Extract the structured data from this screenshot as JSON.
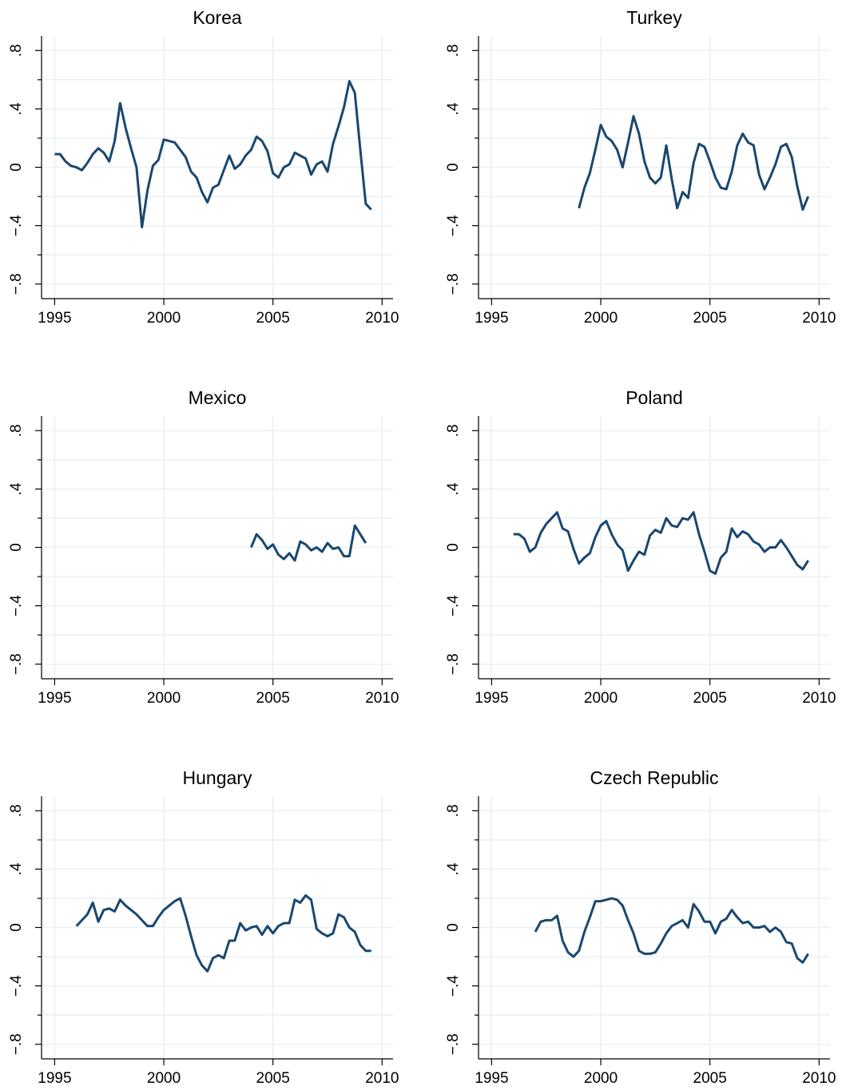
{
  "chart_data": [
    {
      "type": "line",
      "title": "Korea",
      "color": "#1a476f",
      "grid": true,
      "xlim": [
        1994.4,
        2010.5
      ],
      "ylim": [
        -0.9,
        0.9
      ],
      "xticks": [
        1995,
        2000,
        2005,
        2010
      ],
      "yticks": [
        {
          "value": -0.8,
          "label": "−.8"
        },
        {
          "value": -0.4,
          "label": "−.4"
        },
        0,
        {
          "value": 0.4,
          "label": ".4"
        },
        {
          "value": 0.8,
          "label": ".8"
        }
      ],
      "minor_yticks": [
        -0.6,
        -0.2,
        0.2,
        0.6
      ],
      "x": [
        1995,
        1995.25,
        1995.5,
        1995.75,
        1996,
        1996.25,
        1996.5,
        1996.75,
        1997,
        1997.25,
        1997.5,
        1997.75,
        1998,
        1998.25,
        1998.5,
        1998.75,
        1999,
        1999.25,
        1999.5,
        1999.75,
        2000,
        2000.25,
        2000.5,
        2000.75,
        2001,
        2001.25,
        2001.5,
        2001.75,
        2002,
        2002.25,
        2002.5,
        2002.75,
        2003,
        2003.25,
        2003.5,
        2003.75,
        2004,
        2004.25,
        2004.5,
        2004.75,
        2005,
        2005.25,
        2005.5,
        2005.75,
        2006,
        2006.25,
        2006.5,
        2006.75,
        2007,
        2007.25,
        2007.5,
        2007.75,
        2008,
        2008.25,
        2008.5,
        2008.75,
        2009,
        2009.25,
        2009.5
      ],
      "values": [
        0.09,
        0.09,
        0.04,
        0.01,
        0.0,
        -0.02,
        0.03,
        0.09,
        0.13,
        0.1,
        0.04,
        0.18,
        0.44,
        0.27,
        0.13,
        0.0,
        -0.41,
        -0.16,
        0.01,
        0.05,
        0.19,
        0.18,
        0.17,
        0.12,
        0.07,
        -0.03,
        -0.07,
        -0.17,
        -0.24,
        -0.14,
        -0.12,
        -0.02,
        0.08,
        -0.01,
        0.02,
        0.08,
        0.12,
        0.21,
        0.18,
        0.11,
        -0.04,
        -0.07,
        0.0,
        0.02,
        0.1,
        0.08,
        0.06,
        -0.05,
        0.02,
        0.04,
        -0.03,
        0.16,
        0.28,
        0.41,
        0.59,
        0.51,
        0.12,
        -0.25,
        -0.29
      ]
    },
    {
      "type": "line",
      "title": "Turkey",
      "color": "#1a476f",
      "grid": true,
      "xlim": [
        1994.4,
        2010.5
      ],
      "ylim": [
        -0.9,
        0.9
      ],
      "xticks": [
        1995,
        2000,
        2005,
        2010
      ],
      "yticks": [
        {
          "value": -0.8,
          "label": "−.8"
        },
        {
          "value": -0.4,
          "label": "−.4"
        },
        0,
        {
          "value": 0.4,
          "label": ".4"
        },
        {
          "value": 0.8,
          "label": ".8"
        }
      ],
      "minor_yticks": [
        -0.6,
        -0.2,
        0.2,
        0.6
      ],
      "x": [
        1999,
        1999.25,
        1999.5,
        1999.75,
        2000,
        2000.25,
        2000.5,
        2000.75,
        2001,
        2001.25,
        2001.5,
        2001.75,
        2002,
        2002.25,
        2002.5,
        2002.75,
        2003,
        2003.25,
        2003.5,
        2003.75,
        2004,
        2004.25,
        2004.5,
        2004.75,
        2005,
        2005.25,
        2005.5,
        2005.75,
        2006,
        2006.25,
        2006.5,
        2006.75,
        2007,
        2007.25,
        2007.5,
        2007.75,
        2008,
        2008.25,
        2008.5,
        2008.75,
        2009,
        2009.25,
        2009.5
      ],
      "values": [
        -0.28,
        -0.14,
        -0.04,
        0.12,
        0.29,
        0.21,
        0.18,
        0.12,
        0.0,
        0.17,
        0.35,
        0.23,
        0.04,
        -0.07,
        -0.11,
        -0.07,
        0.15,
        -0.08,
        -0.28,
        -0.17,
        -0.21,
        0.03,
        0.16,
        0.14,
        0.04,
        -0.07,
        -0.14,
        -0.15,
        -0.03,
        0.15,
        0.23,
        0.17,
        0.15,
        -0.05,
        -0.15,
        -0.07,
        0.02,
        0.14,
        0.16,
        0.07,
        -0.13,
        -0.29,
        -0.2
      ]
    },
    {
      "type": "line",
      "title": "Mexico",
      "color": "#1a476f",
      "grid": true,
      "xlim": [
        1994.4,
        2010.5
      ],
      "ylim": [
        -0.9,
        0.9
      ],
      "xticks": [
        1995,
        2000,
        2005,
        2010
      ],
      "yticks": [
        {
          "value": -0.8,
          "label": "−.8"
        },
        {
          "value": -0.4,
          "label": "−.4"
        },
        0,
        {
          "value": 0.4,
          "label": ".4"
        },
        {
          "value": 0.8,
          "label": ".8"
        }
      ],
      "minor_yticks": [
        -0.6,
        -0.2,
        0.2,
        0.6
      ],
      "x": [
        2004,
        2004.25,
        2004.5,
        2004.75,
        2005,
        2005.25,
        2005.5,
        2005.75,
        2006,
        2006.25,
        2006.5,
        2006.75,
        2007,
        2007.25,
        2007.5,
        2007.75,
        2008,
        2008.25,
        2008.5,
        2008.75,
        2009,
        2009.25
      ],
      "values": [
        0.0,
        0.09,
        0.05,
        -0.01,
        0.02,
        -0.05,
        -0.08,
        -0.04,
        -0.09,
        0.04,
        0.02,
        -0.02,
        0.0,
        -0.03,
        0.03,
        -0.01,
        0.0,
        -0.06,
        -0.06,
        0.15,
        0.09,
        0.03
      ]
    },
    {
      "type": "line",
      "title": "Poland",
      "color": "#1a476f",
      "grid": true,
      "xlim": [
        1994.4,
        2010.5
      ],
      "ylim": [
        -0.9,
        0.9
      ],
      "xticks": [
        1995,
        2000,
        2005,
        2010
      ],
      "yticks": [
        {
          "value": -0.8,
          "label": "−.8"
        },
        {
          "value": -0.4,
          "label": "−.4"
        },
        0,
        {
          "value": 0.4,
          "label": ".4"
        },
        {
          "value": 0.8,
          "label": ".8"
        }
      ],
      "minor_yticks": [
        -0.6,
        -0.2,
        0.2,
        0.6
      ],
      "x": [
        1996,
        1996.25,
        1996.5,
        1996.75,
        1997,
        1997.25,
        1997.5,
        1997.75,
        1998,
        1998.25,
        1998.5,
        1998.75,
        1999,
        1999.25,
        1999.5,
        1999.75,
        2000,
        2000.25,
        2000.5,
        2000.75,
        2001,
        2001.25,
        2001.5,
        2001.75,
        2002,
        2002.25,
        2002.5,
        2002.75,
        2003,
        2003.25,
        2003.5,
        2003.75,
        2004,
        2004.25,
        2004.5,
        2004.75,
        2005,
        2005.25,
        2005.5,
        2005.75,
        2006,
        2006.25,
        2006.5,
        2006.75,
        2007,
        2007.25,
        2007.5,
        2007.75,
        2008,
        2008.25,
        2008.5,
        2008.75,
        2009,
        2009.25,
        2009.5
      ],
      "values": [
        0.09,
        0.09,
        0.06,
        -0.03,
        0.0,
        0.1,
        0.16,
        0.2,
        0.24,
        0.13,
        0.11,
        -0.01,
        -0.11,
        -0.07,
        -0.04,
        0.07,
        0.15,
        0.18,
        0.09,
        0.02,
        -0.02,
        -0.16,
        -0.09,
        -0.03,
        -0.05,
        0.08,
        0.12,
        0.1,
        0.2,
        0.15,
        0.14,
        0.2,
        0.19,
        0.24,
        0.09,
        -0.03,
        -0.16,
        -0.18,
        -0.07,
        -0.03,
        0.13,
        0.07,
        0.11,
        0.09,
        0.04,
        0.02,
        -0.03,
        0.0,
        0.0,
        0.05,
        0.0,
        -0.06,
        -0.12,
        -0.15,
        -0.09
      ]
    },
    {
      "type": "line",
      "title": "Hungary",
      "color": "#1a476f",
      "grid": true,
      "xlim": [
        1994.4,
        2010.5
      ],
      "ylim": [
        -0.9,
        0.9
      ],
      "xticks": [
        1995,
        2000,
        2005,
        2010
      ],
      "yticks": [
        {
          "value": -0.8,
          "label": "−.8"
        },
        {
          "value": -0.4,
          "label": "−.4"
        },
        0,
        {
          "value": 0.4,
          "label": ".4"
        },
        {
          "value": 0.8,
          "label": ".8"
        }
      ],
      "minor_yticks": [
        -0.6,
        -0.2,
        0.2,
        0.6
      ],
      "x": [
        1996,
        1996.25,
        1996.5,
        1996.75,
        1997,
        1997.25,
        1997.5,
        1997.75,
        1998,
        1998.25,
        1998.5,
        1998.75,
        1999,
        1999.25,
        1999.5,
        1999.75,
        2000,
        2000.25,
        2000.5,
        2000.75,
        2001,
        2001.25,
        2001.5,
        2001.75,
        2002,
        2002.25,
        2002.5,
        2002.75,
        2003,
        2003.25,
        2003.5,
        2003.75,
        2004,
        2004.25,
        2004.5,
        2004.75,
        2005,
        2005.25,
        2005.5,
        2005.75,
        2006,
        2006.25,
        2006.5,
        2006.75,
        2007,
        2007.25,
        2007.5,
        2007.75,
        2008,
        2008.25,
        2008.5,
        2008.75,
        2009,
        2009.25,
        2009.5
      ],
      "values": [
        0.01,
        0.05,
        0.09,
        0.17,
        0.04,
        0.12,
        0.13,
        0.11,
        0.19,
        0.15,
        0.12,
        0.09,
        0.05,
        0.01,
        0.01,
        0.07,
        0.12,
        0.15,
        0.18,
        0.2,
        0.08,
        -0.06,
        -0.19,
        -0.26,
        -0.3,
        -0.21,
        -0.19,
        -0.21,
        -0.09,
        -0.09,
        0.03,
        -0.02,
        0.0,
        0.01,
        -0.05,
        0.01,
        -0.04,
        0.01,
        0.03,
        0.03,
        0.19,
        0.17,
        0.22,
        0.19,
        -0.01,
        -0.04,
        -0.06,
        -0.04,
        0.09,
        0.07,
        0.0,
        -0.03,
        -0.12,
        -0.16,
        -0.16
      ]
    },
    {
      "type": "line",
      "title": "Czech Republic",
      "color": "#1a476f",
      "grid": true,
      "xlim": [
        1994.4,
        2010.5
      ],
      "ylim": [
        -0.9,
        0.9
      ],
      "xticks": [
        1995,
        2000,
        2005,
        2010
      ],
      "yticks": [
        {
          "value": -0.8,
          "label": "−.8"
        },
        {
          "value": -0.4,
          "label": "−.4"
        },
        0,
        {
          "value": 0.4,
          "label": ".4"
        },
        {
          "value": 0.8,
          "label": ".8"
        }
      ],
      "minor_yticks": [
        -0.6,
        -0.2,
        0.2,
        0.6
      ],
      "x": [
        1997,
        1997.25,
        1997.5,
        1997.75,
        1998,
        1998.25,
        1998.5,
        1998.75,
        1999,
        1999.25,
        1999.5,
        1999.75,
        2000,
        2000.25,
        2000.5,
        2000.75,
        2001,
        2001.25,
        2001.5,
        2001.75,
        2002,
        2002.25,
        2002.5,
        2002.75,
        2003,
        2003.25,
        2003.5,
        2003.75,
        2004,
        2004.25,
        2004.5,
        2004.75,
        2005,
        2005.25,
        2005.5,
        2005.75,
        2006,
        2006.25,
        2006.5,
        2006.75,
        2007,
        2007.25,
        2007.5,
        2007.75,
        2008,
        2008.25,
        2008.5,
        2008.75,
        2009,
        2009.25,
        2009.5
      ],
      "values": [
        -0.03,
        0.04,
        0.05,
        0.05,
        0.08,
        -0.09,
        -0.17,
        -0.2,
        -0.16,
        -0.03,
        0.07,
        0.18,
        0.18,
        0.19,
        0.2,
        0.19,
        0.15,
        0.05,
        -0.04,
        -0.16,
        -0.18,
        -0.18,
        -0.17,
        -0.11,
        -0.04,
        0.01,
        0.03,
        0.05,
        0.0,
        0.16,
        0.11,
        0.04,
        0.04,
        -0.04,
        0.04,
        0.06,
        0.12,
        0.07,
        0.03,
        0.04,
        0.0,
        0.0,
        0.01,
        -0.03,
        0.0,
        -0.03,
        -0.1,
        -0.11,
        -0.21,
        -0.24,
        -0.18
      ]
    }
  ]
}
